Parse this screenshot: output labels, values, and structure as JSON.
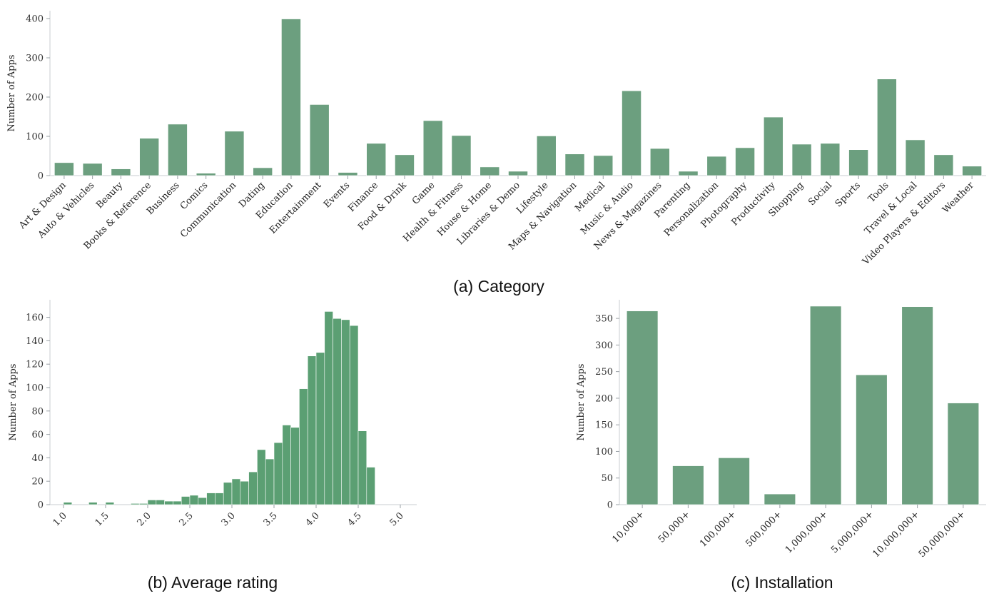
{
  "colors": {
    "bar": "#6c9f7f",
    "hist_bar": "#5b9f73"
  },
  "chart_data": [
    {
      "type": "bar",
      "caption": "(a) Category",
      "ylabel": "Number of Apps",
      "ylim": [
        0,
        420
      ],
      "yticks": [
        0,
        100,
        200,
        300,
        400
      ],
      "categories": [
        "Art & Design",
        "Auto & Vehicles",
        "Beauty",
        "Books & Reference",
        "Business",
        "Comics",
        "Communication",
        "Dating",
        "Education",
        "Entertainment",
        "Events",
        "Finance",
        "Food & Drink",
        "Game",
        "Health & Fitness",
        "House & Home",
        "Libraries & Demo",
        "Lifestyle",
        "Maps & Navigation",
        "Medical",
        "Music & Audio",
        "News & Magazines",
        "Parenting",
        "Personalization",
        "Photography",
        "Productivity",
        "Shopping",
        "Social",
        "Sports",
        "Tools",
        "Travel & Local",
        "Video Players & Editors",
        "Weather"
      ],
      "values": [
        33,
        31,
        17,
        95,
        131,
        6,
        113,
        20,
        399,
        181,
        8,
        82,
        53,
        140,
        102,
        22,
        11,
        101,
        55,
        51,
        216,
        69,
        11,
        49,
        71,
        149,
        80,
        82,
        66,
        246,
        91,
        53,
        24
      ]
    },
    {
      "type": "histogram",
      "caption": "(b) Average rating",
      "ylabel": "Number of Apps",
      "xlim": [
        0.85,
        5.2
      ],
      "ylim": [
        0,
        175
      ],
      "xticks": [
        "1.0",
        "1.5",
        "2.0",
        "2.5",
        "3.0",
        "3.5",
        "4.0",
        "4.5",
        "5.0"
      ],
      "yticks": [
        0,
        20,
        40,
        60,
        80,
        100,
        120,
        140,
        160
      ],
      "bin_width": 0.1,
      "bin_starts": [
        1.0,
        1.1,
        1.2,
        1.3,
        1.4,
        1.5,
        1.6,
        1.7,
        1.8,
        1.9,
        2.0,
        2.1,
        2.2,
        2.3,
        2.4,
        2.5,
        2.6,
        2.7,
        2.8,
        2.9,
        3.0,
        3.1,
        3.2,
        3.3,
        3.4,
        3.5,
        3.6,
        3.7,
        3.8,
        3.9,
        4.0,
        4.1,
        4.2,
        4.3,
        4.4,
        4.5,
        4.6,
        4.7,
        4.8,
        4.9
      ],
      "counts": [
        2,
        0,
        0,
        2,
        0,
        2,
        0,
        0,
        1,
        1,
        4,
        4,
        3,
        3,
        7,
        8,
        6,
        10,
        10,
        19,
        22,
        20,
        28,
        47,
        39,
        53,
        68,
        66,
        99,
        127,
        130,
        165,
        159,
        158,
        153,
        63,
        32,
        0,
        0,
        0
      ]
    },
    {
      "type": "bar",
      "caption": "(c) Installation",
      "ylabel": "Number of Apps",
      "ylim": [
        0,
        385
      ],
      "yticks": [
        0,
        50,
        100,
        150,
        200,
        250,
        300,
        350
      ],
      "categories": [
        "10,000+",
        "50,000+",
        "100,000+",
        "500,000+",
        "1,000,000+",
        "5,000,000+",
        "10,000,000+",
        "50,000,000+"
      ],
      "values": [
        364,
        73,
        88,
        20,
        373,
        244,
        372,
        191
      ]
    }
  ]
}
